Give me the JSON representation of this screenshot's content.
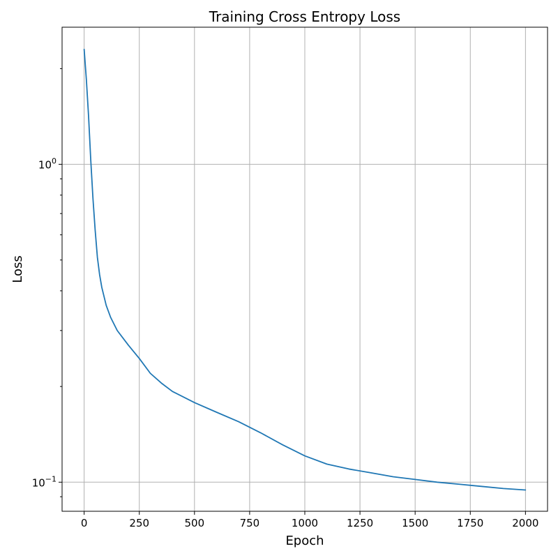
{
  "chart_data": {
    "type": "line",
    "title": "Training Cross Entropy Loss",
    "xlabel": "Epoch",
    "ylabel": "Loss",
    "yscale": "log",
    "grid": true,
    "xlim": [
      -100,
      2100
    ],
    "ylim": [
      0.081,
      2.7
    ],
    "x_ticks": [
      0,
      250,
      500,
      750,
      1000,
      1250,
      1500,
      1750,
      2000
    ],
    "y_major_ticks": [
      {
        "value": 0.1,
        "base": "10",
        "exponent": "−1"
      },
      {
        "value": 1,
        "base": "10",
        "exponent": "0"
      }
    ],
    "y_minor_ticks": [
      0.09,
      0.2,
      0.3,
      0.4,
      0.5,
      0.6,
      0.7,
      0.8,
      0.9,
      2
    ],
    "series": [
      {
        "color": "#1f77b4",
        "x": [
          0,
          10,
          20,
          30,
          40,
          50,
          60,
          70,
          80,
          100,
          120,
          150,
          200,
          250,
          300,
          350,
          400,
          500,
          600,
          700,
          800,
          900,
          1000,
          1100,
          1200,
          1300,
          1400,
          1500,
          1600,
          1700,
          1800,
          1900,
          2000
        ],
        "y": [
          2.3,
          1.85,
          1.42,
          1.03,
          0.78,
          0.62,
          0.51,
          0.45,
          0.41,
          0.36,
          0.33,
          0.3,
          0.27,
          0.245,
          0.22,
          0.205,
          0.193,
          0.178,
          0.166,
          0.155,
          0.143,
          0.131,
          0.121,
          0.114,
          0.11,
          0.107,
          0.104,
          0.102,
          0.1,
          0.0985,
          0.097,
          0.0955,
          0.0945
        ]
      }
    ]
  }
}
